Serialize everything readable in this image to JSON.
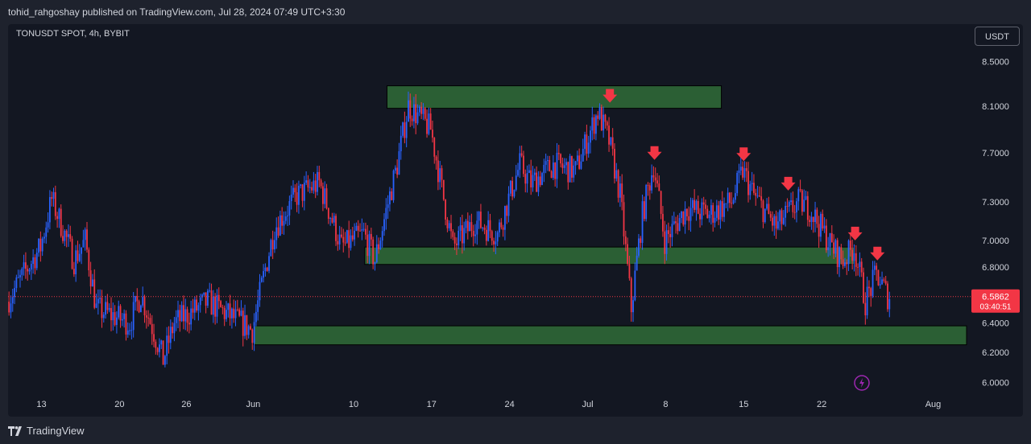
{
  "header": {
    "publish_line": "tohid_rahgoshay published on TradingView.com, Jul 28, 2024 07:49 UTC+3:30"
  },
  "symbol_line": "TONUSDT SPOT, 4h, BYBIT",
  "currency_button": "USDT",
  "footer": {
    "brand": "TradingView",
    "brand_icon": "tradingview-logo-icon"
  },
  "colors": {
    "background": "#131722",
    "up_candle": "#2962ff",
    "down_candle": "#f23645",
    "zone_fill": "#2b5f34",
    "zone_border": "#000000",
    "arrow": "#f23645",
    "price_line": "#f23645",
    "axis_text": "#d1d4dc"
  },
  "chart_data": {
    "type": "candlestick",
    "title": "TONUSDT SPOT, 4h, BYBIT",
    "y_axis": {
      "labels": [
        "8.5000",
        "8.1000",
        "7.7000",
        "7.3000",
        "7.0000",
        "6.8000",
        "6.4000",
        "6.2000",
        "6.0000"
      ],
      "scale": "log",
      "ylim": [
        5.95,
        8.7
      ]
    },
    "x_axis": {
      "labels": [
        "13",
        "20",
        "26",
        "Jun",
        "10",
        "17",
        "24",
        "Jul",
        "8",
        "15",
        "22",
        "Aug"
      ],
      "start": "2024-05-10",
      "end": "2024-08-04"
    },
    "current_price": {
      "value": "6.5862",
      "countdown": "03:40:51"
    },
    "price_path": [
      {
        "x": "2024-05-10",
        "y": 6.55
      },
      {
        "x": "2024-05-13",
        "y": 6.95
      },
      {
        "x": "2024-05-14",
        "y": 7.32
      },
      {
        "x": "2024-05-16",
        "y": 6.85
      },
      {
        "x": "2024-05-17",
        "y": 7.0
      },
      {
        "x": "2024-05-18",
        "y": 6.5
      },
      {
        "x": "2024-05-21",
        "y": 6.4
      },
      {
        "x": "2024-05-22",
        "y": 6.6
      },
      {
        "x": "2024-05-24",
        "y": 6.15
      },
      {
        "x": "2024-05-25",
        "y": 6.4
      },
      {
        "x": "2024-05-28",
        "y": 6.55
      },
      {
        "x": "2024-05-31",
        "y": 6.4
      },
      {
        "x": "2024-06-01",
        "y": 6.35
      },
      {
        "x": "2024-06-03",
        "y": 7.1
      },
      {
        "x": "2024-06-05",
        "y": 7.35
      },
      {
        "x": "2024-06-07",
        "y": 7.45
      },
      {
        "x": "2024-06-09",
        "y": 6.95
      },
      {
        "x": "2024-06-11",
        "y": 7.05
      },
      {
        "x": "2024-06-12",
        "y": 6.85
      },
      {
        "x": "2024-06-14",
        "y": 7.6
      },
      {
        "x": "2024-06-15",
        "y": 8.1
      },
      {
        "x": "2024-06-17",
        "y": 7.9
      },
      {
        "x": "2024-06-18",
        "y": 7.4
      },
      {
        "x": "2024-06-19",
        "y": 6.95
      },
      {
        "x": "2024-06-21",
        "y": 7.15
      },
      {
        "x": "2024-06-23",
        "y": 7.05
      },
      {
        "x": "2024-06-25",
        "y": 7.6
      },
      {
        "x": "2024-06-26",
        "y": 7.45
      },
      {
        "x": "2024-06-28",
        "y": 7.6
      },
      {
        "x": "2024-06-30",
        "y": 7.55
      },
      {
        "x": "2024-07-02",
        "y": 8.05
      },
      {
        "x": "2024-07-03",
        "y": 7.8
      },
      {
        "x": "2024-07-04",
        "y": 7.35
      },
      {
        "x": "2024-07-05",
        "y": 6.5
      },
      {
        "x": "2024-07-06",
        "y": 7.2
      },
      {
        "x": "2024-07-07",
        "y": 7.6
      },
      {
        "x": "2024-07-08",
        "y": 7.0
      },
      {
        "x": "2024-07-10",
        "y": 7.25
      },
      {
        "x": "2024-07-12",
        "y": 7.2
      },
      {
        "x": "2024-07-14",
        "y": 7.3
      },
      {
        "x": "2024-07-15",
        "y": 7.55
      },
      {
        "x": "2024-07-16",
        "y": 7.35
      },
      {
        "x": "2024-07-18",
        "y": 7.1
      },
      {
        "x": "2024-07-20",
        "y": 7.3
      },
      {
        "x": "2024-07-21",
        "y": 7.25
      },
      {
        "x": "2024-07-23",
        "y": 6.95
      },
      {
        "x": "2024-07-24",
        "y": 6.85
      },
      {
        "x": "2024-07-25",
        "y": 6.95
      },
      {
        "x": "2024-07-26",
        "y": 6.55
      },
      {
        "x": "2024-07-27",
        "y": 6.75
      },
      {
        "x": "2024-07-28",
        "y": 6.59
      }
    ],
    "zones": [
      {
        "y_top": 8.28,
        "y_bottom": 8.08,
        "x_start": "2024-06-13",
        "x_end": "2024-07-13"
      },
      {
        "y_top": 6.95,
        "y_bottom": 6.82,
        "x_start": "2024-06-11",
        "x_end": "2024-07-25"
      },
      {
        "y_top": 6.38,
        "y_bottom": 6.25,
        "x_start": "2024-06-01",
        "x_end": "2024-08-04"
      }
    ],
    "arrows": [
      {
        "x": "2024-07-03",
        "y": 8.13
      },
      {
        "x": "2024-07-07",
        "y": 7.64
      },
      {
        "x": "2024-07-15",
        "y": 7.63
      },
      {
        "x": "2024-07-19",
        "y": 7.39
      },
      {
        "x": "2024-07-25",
        "y": 7.0
      },
      {
        "x": "2024-07-27",
        "y": 6.85
      }
    ]
  }
}
